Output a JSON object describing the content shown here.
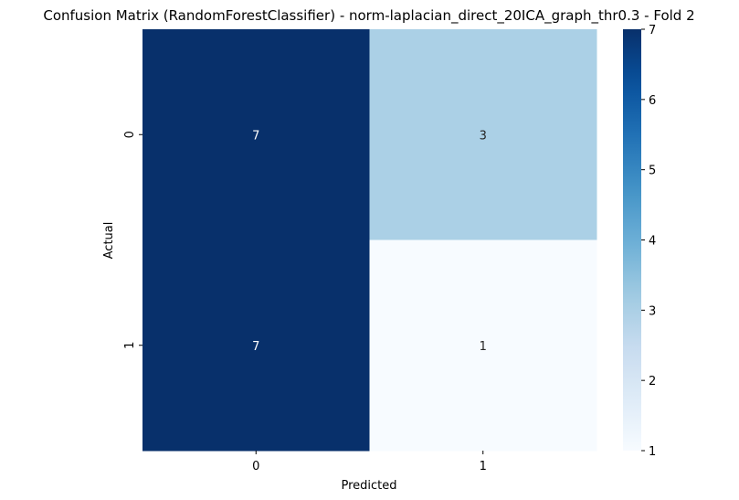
{
  "chart_data": {
    "type": "heatmap",
    "title": "Confusion Matrix (RandomForestClassifier) - norm-laplacian_direct_20ICA_graph_thr0.3 - Fold 2",
    "xlabel": "Predicted",
    "ylabel": "Actual",
    "x_categories": [
      "0",
      "1"
    ],
    "y_categories": [
      "0",
      "1"
    ],
    "values": [
      [
        7,
        3
      ],
      [
        7,
        1
      ]
    ],
    "annotations": true,
    "colormap": "Blues",
    "colorbar": {
      "min": 1,
      "max": 7,
      "ticks": [
        "1",
        "2",
        "3",
        "4",
        "5",
        "6",
        "7"
      ]
    }
  },
  "colors": {
    "low": "#f7fbff",
    "high": "#08306b",
    "text_light": "#ffffff",
    "text_dark": "#262626"
  }
}
